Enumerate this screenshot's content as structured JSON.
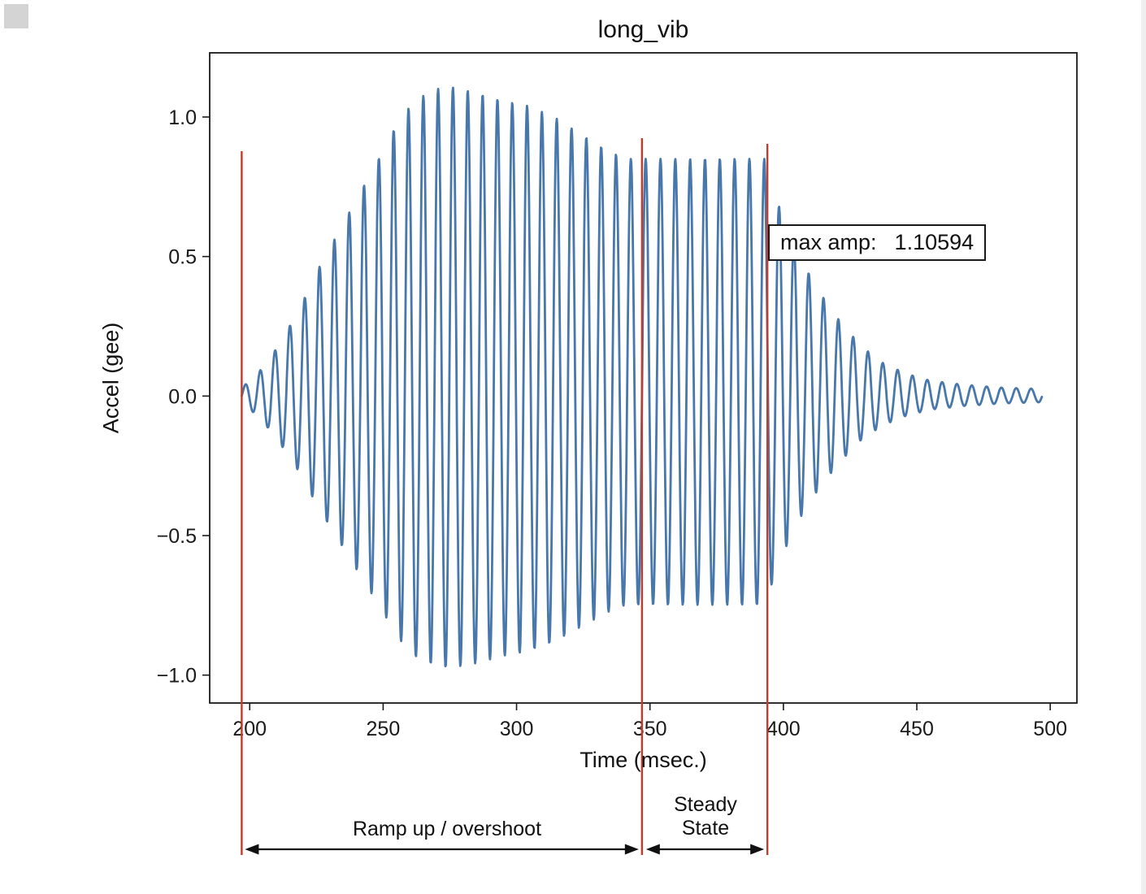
{
  "figure": {
    "background": "#ffffff"
  },
  "chart_data": {
    "type": "line",
    "title": "long_vib",
    "xlabel": "Time (msec.)",
    "ylabel": "Accel (gee)",
    "xlim": [
      185,
      510
    ],
    "ylim": [
      -1.1,
      1.23
    ],
    "xtick_values": [
      200,
      250,
      300,
      350,
      400,
      450,
      500
    ],
    "xtick_labels": [
      "200",
      "250",
      "300",
      "350",
      "400",
      "450",
      "500"
    ],
    "ytick_values": [
      -1.0,
      -0.5,
      0.0,
      0.5,
      1.0
    ],
    "ytick_labels": [
      "−1.0",
      "−0.5",
      "0.0",
      "0.5",
      "1.0"
    ],
    "grid": false,
    "line_color": "#4878ab",
    "axis_color": "#1a1a1a",
    "signal": {
      "description": "oscillatory acceleration burst: ramp up, overshoot, steady state, ring-down decay",
      "start_msec": 197,
      "end_msec": 497,
      "frequency_hz": 180,
      "negative_scale": 0.88,
      "envelope_points": [
        [
          197,
          0.03
        ],
        [
          203,
          0.08
        ],
        [
          210,
          0.17
        ],
        [
          218,
          0.3
        ],
        [
          226,
          0.46
        ],
        [
          234,
          0.6
        ],
        [
          242,
          0.74
        ],
        [
          250,
          0.88
        ],
        [
          256,
          0.99
        ],
        [
          262,
          1.06
        ],
        [
          270,
          1.1
        ],
        [
          276,
          1.106
        ],
        [
          284,
          1.09
        ],
        [
          294,
          1.06
        ],
        [
          304,
          1.04
        ],
        [
          314,
          1.0
        ],
        [
          324,
          0.94
        ],
        [
          334,
          0.88
        ],
        [
          341,
          0.85
        ],
        [
          393,
          0.85
        ],
        [
          399,
          0.66
        ],
        [
          406,
          0.5
        ],
        [
          413,
          0.38
        ],
        [
          421,
          0.27
        ],
        [
          429,
          0.18
        ],
        [
          437,
          0.12
        ],
        [
          446,
          0.08
        ],
        [
          455,
          0.055
        ],
        [
          468,
          0.04
        ],
        [
          482,
          0.03
        ],
        [
          497,
          0.025
        ]
      ]
    },
    "max_amp": {
      "label": "max amp:",
      "value": "1.10594"
    },
    "annotations": {
      "region_boundaries_msec": [
        197,
        347,
        394
      ],
      "boundary_line_color": "#c23b2b",
      "arrow_color": "#111111",
      "regions": [
        {
          "label": "Ramp up / overshoot",
          "from_msec": 197,
          "to_msec": 347
        },
        {
          "label": "Steady State",
          "from_msec": 347,
          "to_msec": 394
        }
      ]
    }
  }
}
